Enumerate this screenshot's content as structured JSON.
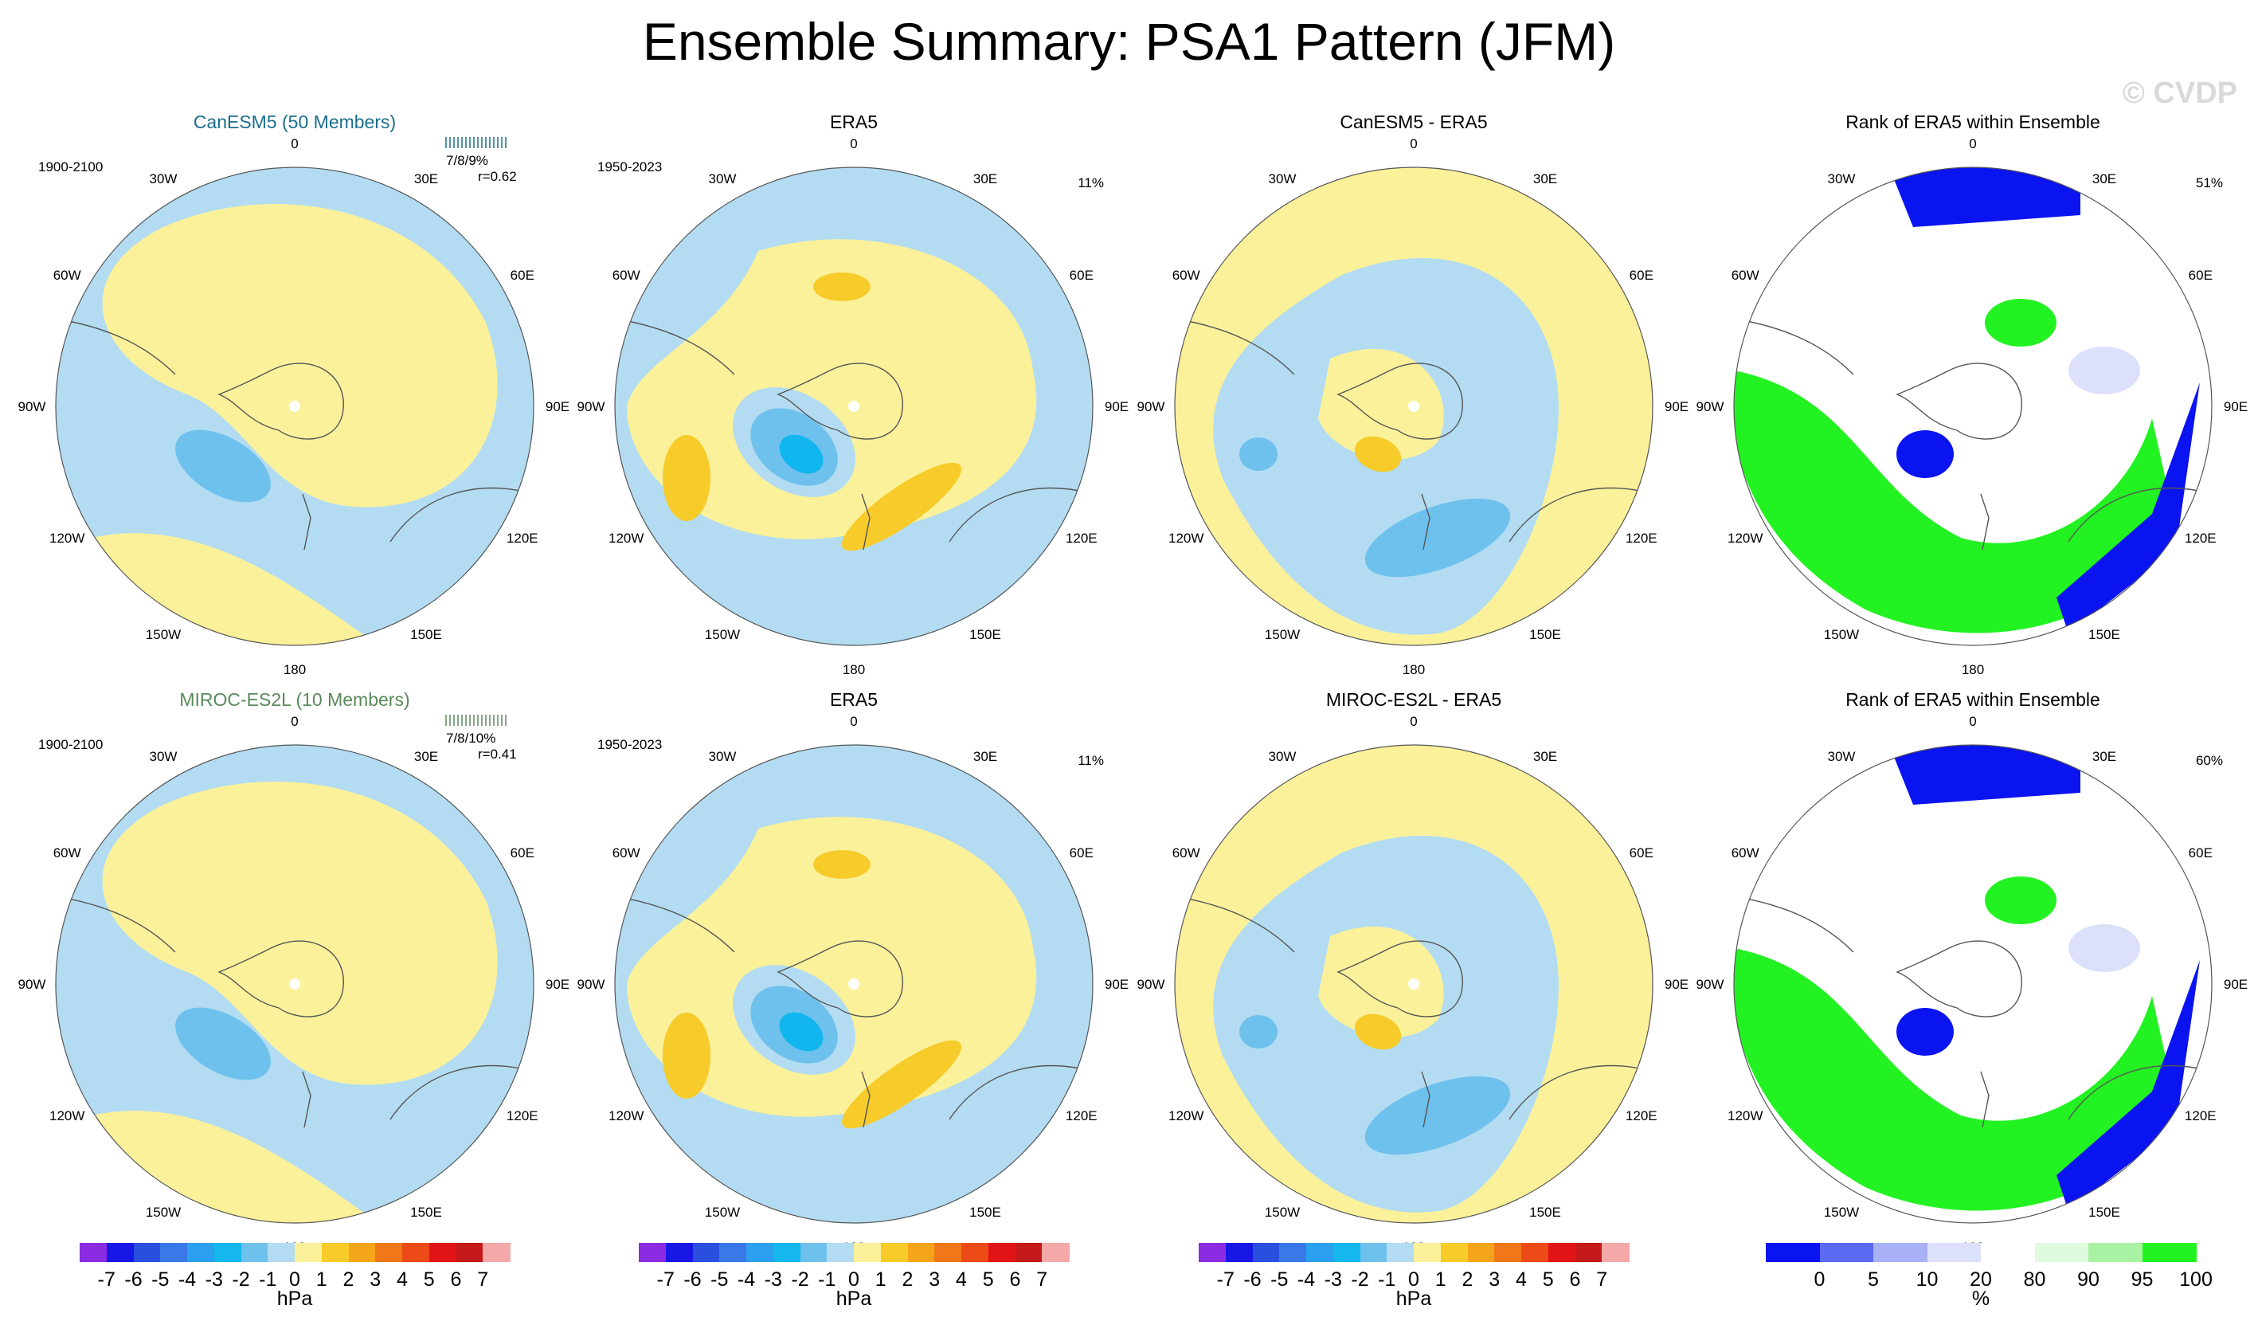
{
  "title": "Ensemble Summary: PSA1 Pattern (JFM)",
  "watermark": "© CVDP",
  "lon_labels": [
    "0",
    "30E",
    "60E",
    "90E",
    "120E",
    "150E",
    "180",
    "150W",
    "120W",
    "90W",
    "60W",
    "30W"
  ],
  "colors": {
    "neg1": "#b3dcf2",
    "neg2": "#6ec1ec",
    "neg3": "#12b6ee",
    "pos1": "#fbf19a",
    "pos2": "#f6cb2a",
    "rank_blue": "#0a14f0",
    "rank_lblue": "#dde0fb",
    "rank_green": "#22f221",
    "rank_lgreen": "#a9f2a4",
    "rank_white": "#ffffff"
  },
  "rows": [
    {
      "model_title": "CanESM5 (50 Members)",
      "model_color": "#1a6e8c",
      "model_period": "1900-2100",
      "model_stats": "7/8/9%",
      "model_r": "r=0.62",
      "obs_title": "ERA5",
      "obs_period": "1950-2023",
      "obs_pct": "11%",
      "diff_title": "CanESM5 - ERA5",
      "rank_title": "Rank of ERA5 within Ensemble",
      "rank_pct": "51%"
    },
    {
      "model_title": "MIROC-ES2L (10 Members)",
      "model_color": "#5a8a5a",
      "model_period": "1900-2100",
      "model_stats": "7/8/10%",
      "model_r": "r=0.41",
      "obs_title": "ERA5",
      "obs_period": "1950-2023",
      "obs_pct": "11%",
      "diff_title": "MIROC-ES2L - ERA5",
      "rank_title": "Rank of ERA5 within Ensemble",
      "rank_pct": "60%"
    }
  ],
  "hpa_colorbar": {
    "labels": [
      "-7",
      "-6",
      "-5",
      "-4",
      "-3",
      "-2",
      "-1",
      "0",
      "1",
      "2",
      "3",
      "4",
      "5",
      "6",
      "7"
    ],
    "unit": "hPa",
    "colors": [
      "#8b2be2",
      "#1818e6",
      "#2a4fe0",
      "#3a78e8",
      "#2aa0ee",
      "#14b8ee",
      "#6ec1ec",
      "#b3dcf2",
      "#fbf19a",
      "#f6cb2a",
      "#f5a51a",
      "#f07818",
      "#ec4a16",
      "#e01414",
      "#c41a1a",
      "#f4a8a8"
    ]
  },
  "rank_colorbar": {
    "labels": [
      "0",
      "5",
      "10",
      "20",
      "80",
      "90",
      "95",
      "100"
    ],
    "unit": "%",
    "colors": [
      "#0a14f0",
      "#5a6af2",
      "#a8b0f6",
      "#dde0fb",
      "#ffffff",
      "#e0fae0",
      "#a9f2a4",
      "#22f221"
    ]
  }
}
